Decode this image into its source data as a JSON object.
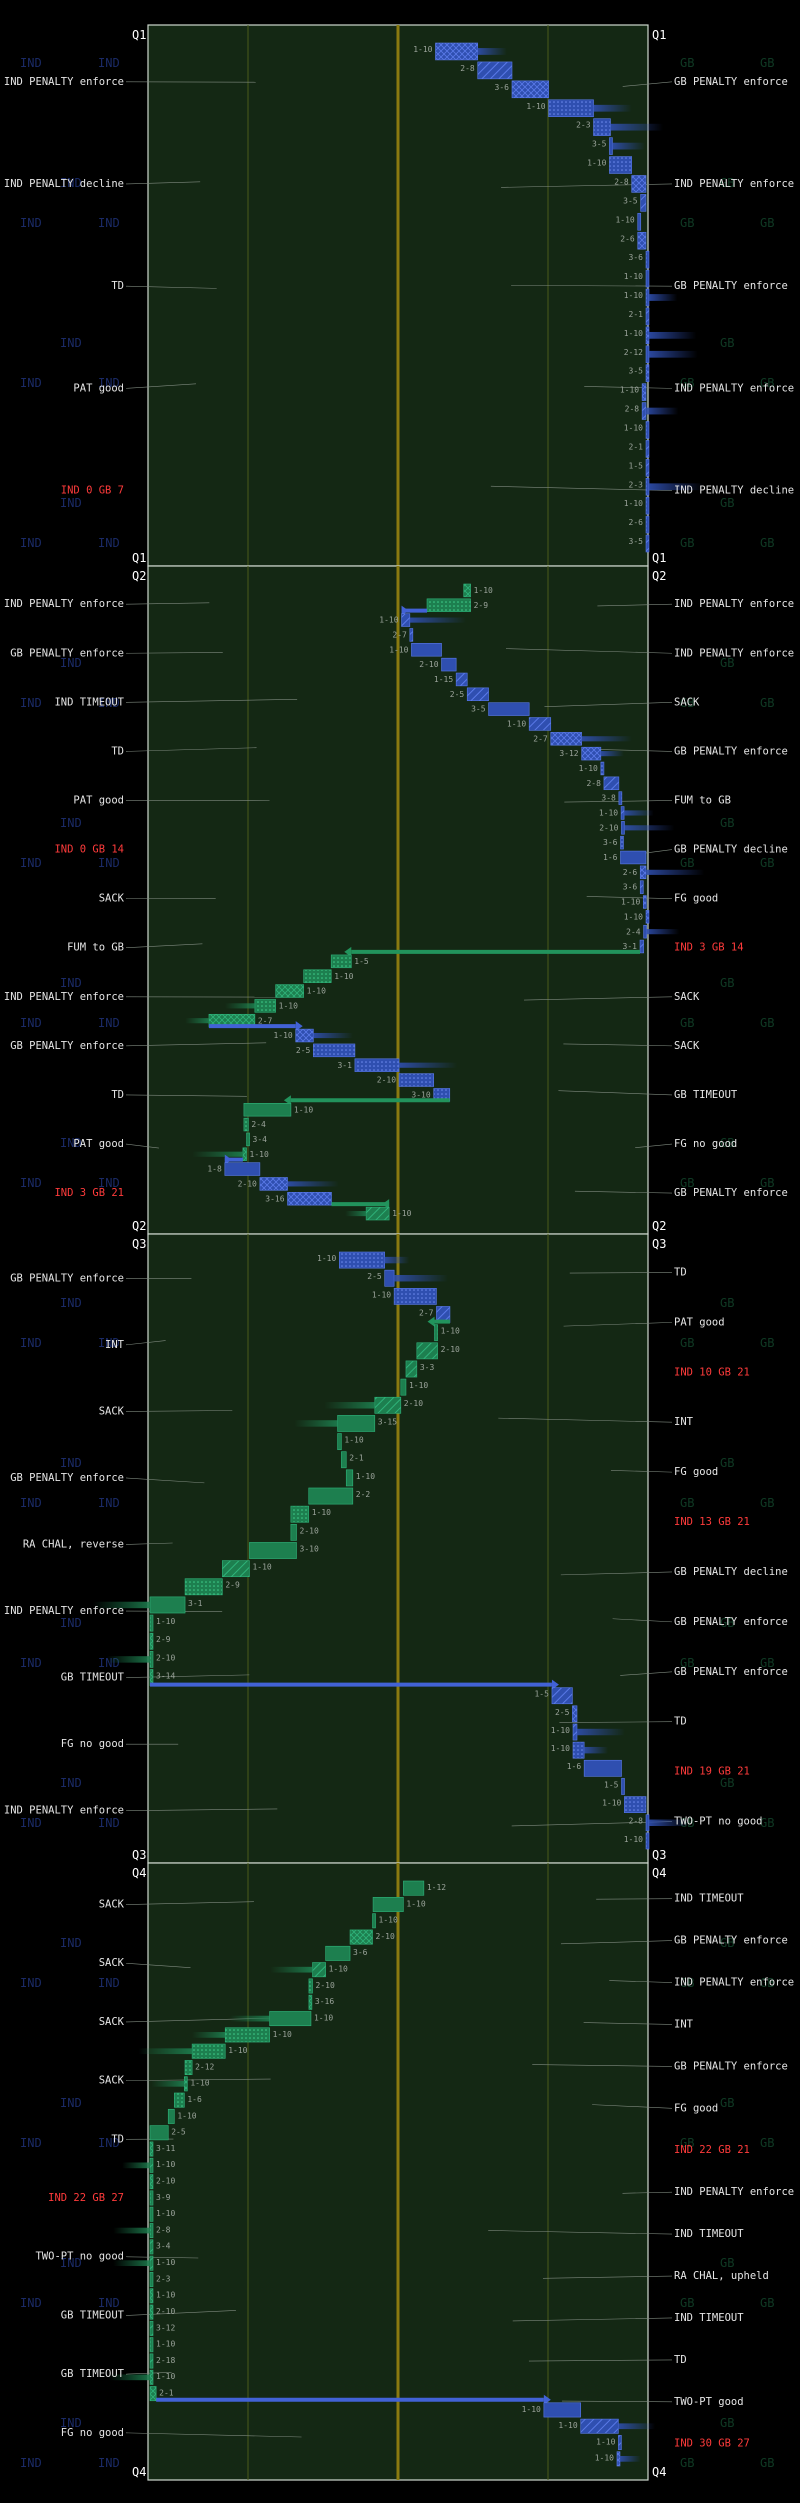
{
  "colors": {
    "background": "#000000",
    "field": "#142814",
    "ind": "#2f4fb0",
    "ind_edge": "#5a7ae8",
    "gb": "#1d7f4f",
    "gb_edge": "#2fb37a",
    "midfield": "#8a7a10",
    "yard_line": "#4a5a1a",
    "label": "#e6e6e6",
    "score": "#ff3b3b",
    "watermark_ind": "#1a2a66",
    "watermark_gb": "#0f3a24"
  },
  "watermarks": {
    "left": "IND",
    "right": "GB"
  },
  "chart_data": {
    "type": "drive-chart",
    "quarters": [
      {
        "name": "Q1",
        "left_events": [
          {
            "text": "IND PENALTY enforce"
          },
          {
            "text": "IND PENALTY decline"
          },
          {
            "text": "TD"
          },
          {
            "text": "PAT good"
          },
          {
            "text": "IND 0 GB 7",
            "score": true
          }
        ],
        "right_events": [
          {
            "text": "GB PENALTY enforce"
          },
          {
            "text": "IND PENALTY enforce"
          },
          {
            "text": "GB PENALTY enforce"
          },
          {
            "text": "IND PENALTY enforce"
          },
          {
            "text": "IND PENALTY decline"
          }
        ],
        "downs": [
          "1-10",
          "2-8",
          "3-6",
          "1-10",
          "2-3",
          "3-5",
          "1-10",
          "2-8",
          "3-5",
          "1-10",
          "2-6",
          "3-6",
          "1-10",
          "1-10",
          "2-1",
          "1-10",
          "2-12",
          "3-5",
          "1-10",
          "2-8",
          "1-10",
          "2-1",
          "1-5",
          "2-3",
          "1-10",
          "2-6",
          "3-5"
        ]
      },
      {
        "name": "Q2",
        "left_events": [
          {
            "text": "IND PENALTY enforce"
          },
          {
            "text": "GB PENALTY enforce"
          },
          {
            "text": "IND TIMEOUT"
          },
          {
            "text": "TD"
          },
          {
            "text": "PAT good"
          },
          {
            "text": "IND 0 GB 14",
            "score": true
          },
          {
            "text": "SACK"
          },
          {
            "text": "FUM to GB"
          },
          {
            "text": "IND PENALTY enforce"
          },
          {
            "text": "GB PENALTY enforce"
          },
          {
            "text": "TD"
          },
          {
            "text": "PAT good"
          },
          {
            "text": "IND 3 GB 21",
            "score": true
          }
        ],
        "right_events": [
          {
            "text": "IND PENALTY enforce"
          },
          {
            "text": "IND PENALTY enforce"
          },
          {
            "text": "SACK"
          },
          {
            "text": "GB PENALTY enforce"
          },
          {
            "text": "FUM to GB"
          },
          {
            "text": "GB PENALTY decline"
          },
          {
            "text": "FG good"
          },
          {
            "text": "IND 3 GB 14",
            "score": true
          },
          {
            "text": "SACK"
          },
          {
            "text": "SACK"
          },
          {
            "text": "GB TIMEOUT"
          },
          {
            "text": "FG no good"
          },
          {
            "text": "GB PENALTY enforce"
          }
        ],
        "downs": [
          "1-10",
          "2-9",
          "1-10",
          "2-7",
          "1-10",
          "2-10",
          "1-15",
          "2-5",
          "3-5",
          "1-10",
          "2-7",
          "3-12",
          "1-10",
          "2-8",
          "3-8",
          "1-10",
          "2-10",
          "3-6",
          "1-6",
          "2-6",
          "3-6",
          "1-10",
          "1-10",
          "2-4",
          "3-1",
          "1-5",
          "1-10",
          "1-10",
          "1-10",
          "2-7",
          "1-10",
          "2-5",
          "3-1",
          "2-10",
          "3-10",
          "1-10",
          "2-4",
          "3-4",
          "1-10",
          "1-8",
          "2-10",
          "3-16",
          "1-10"
        ]
      },
      {
        "name": "Q3",
        "left_events": [
          {
            "text": "GB PENALTY enforce"
          },
          {
            "text": "INT"
          },
          {
            "text": "SACK"
          },
          {
            "text": "GB PENALTY enforce"
          },
          {
            "text": "RA CHAL, reverse"
          },
          {
            "text": "IND PENALTY enforce"
          },
          {
            "text": "GB TIMEOUT"
          },
          {
            "text": "FG no good"
          },
          {
            "text": "IND PENALTY enforce"
          }
        ],
        "right_events": [
          {
            "text": "TD"
          },
          {
            "text": "PAT good"
          },
          {
            "text": "IND 10 GB 21",
            "score": true
          },
          {
            "text": "INT"
          },
          {
            "text": "FG good"
          },
          {
            "text": "IND 13 GB 21",
            "score": true
          },
          {
            "text": "GB PENALTY decline"
          },
          {
            "text": "GB PENALTY enforce"
          },
          {
            "text": "GB PENALTY enforce"
          },
          {
            "text": "TD"
          },
          {
            "text": "IND 19 GB 21",
            "score": true
          },
          {
            "text": "TWO-PT no good"
          }
        ],
        "downs": [
          "1-10",
          "2-5",
          "1-10",
          "2-7",
          "1-10",
          "2-10",
          "3-3",
          "1-10",
          "2-10",
          "3-15",
          "1-10",
          "2-1",
          "1-10",
          "2-2",
          "1-10",
          "2-10",
          "3-10",
          "1-10",
          "2-9",
          "3-1",
          "1-10",
          "2-9",
          "2-10",
          "3-14",
          "1-5",
          "2-5",
          "1-10",
          "1-10",
          "1-6",
          "1-5",
          "1-10",
          "2-8",
          "1-10"
        ]
      },
      {
        "name": "Q4",
        "left_events": [
          {
            "text": "SACK"
          },
          {
            "text": "SACK"
          },
          {
            "text": "SACK"
          },
          {
            "text": "SACK"
          },
          {
            "text": "TD"
          },
          {
            "text": "IND 22 GB 27",
            "score": true
          },
          {
            "text": "TWO-PT no good"
          },
          {
            "text": "GB TIMEOUT"
          },
          {
            "text": "GB TIMEOUT"
          },
          {
            "text": "FG no good"
          }
        ],
        "right_events": [
          {
            "text": "IND TIMEOUT"
          },
          {
            "text": "GB PENALTY enforce"
          },
          {
            "text": "IND PENALTY enforce"
          },
          {
            "text": "INT"
          },
          {
            "text": "GB PENALTY enforce"
          },
          {
            "text": "FG good"
          },
          {
            "text": "IND 22 GB 21",
            "score": true
          },
          {
            "text": "IND PENALTY enforce"
          },
          {
            "text": "IND TIMEOUT"
          },
          {
            "text": "RA CHAL, upheld"
          },
          {
            "text": "IND TIMEOUT"
          },
          {
            "text": "TD"
          },
          {
            "text": "TWO-PT good"
          },
          {
            "text": "IND 30 GB 27",
            "score": true
          }
        ],
        "downs": [
          "1-12",
          "1-10",
          "1-10",
          "2-10",
          "3-6",
          "1-10",
          "2-10",
          "3-16",
          "1-10",
          "1-10",
          "1-10",
          "2-12",
          "1-10",
          "1-6",
          "1-10",
          "2-5",
          "3-11",
          "1-10",
          "2-10",
          "3-9",
          "1-10",
          "2-8",
          "3-4",
          "1-10",
          "2-3",
          "1-10",
          "2-10",
          "3-12",
          "1-10",
          "2-18",
          "1-10",
          "2-1",
          "1-10",
          "1-10",
          "1-10",
          "1-10"
        ]
      }
    ]
  }
}
